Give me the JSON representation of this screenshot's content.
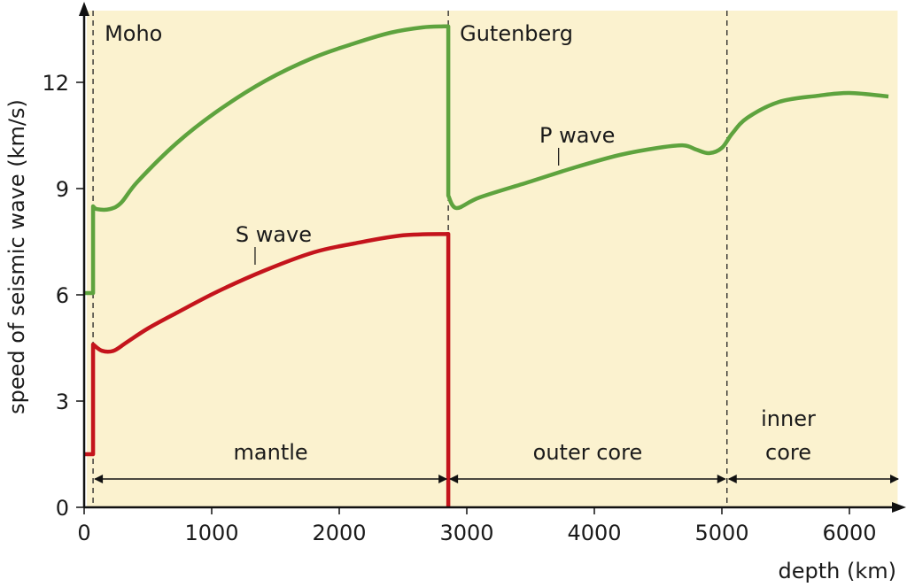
{
  "chart_data": {
    "type": "line",
    "xlabel": "depth (km)",
    "ylabel": "speed of seismic wave (km/s)",
    "xlim": [
      0,
      6371
    ],
    "ylim": [
      0,
      13.8
    ],
    "xticks": [
      0,
      1000,
      2000,
      3000,
      4000,
      5000,
      6000
    ],
    "yticks": [
      0,
      3,
      6,
      9,
      12
    ],
    "grid": false,
    "background": "#fbf2cf",
    "boundaries": [
      {
        "name": "Moho",
        "depth": 70,
        "label": "Moho"
      },
      {
        "name": "Gutenberg",
        "depth": 2855,
        "label": "Gutenberg"
      },
      {
        "name": "inner-core-boundary",
        "depth": 5040,
        "label": ""
      }
    ],
    "regions": [
      {
        "label": "mantle",
        "from": 70,
        "to": 2855
      },
      {
        "label": "outer core",
        "from": 2855,
        "to": 5040
      },
      {
        "label": "inner core",
        "label_lines": [
          "inner",
          "core"
        ],
        "from": 5040,
        "to": 6371
      }
    ],
    "series": [
      {
        "name": "P wave",
        "color": "#5ea33e",
        "segments": [
          [
            [
              0,
              6.05
            ],
            [
              70,
              6.05
            ]
          ],
          [
            [
              70,
              8.5
            ],
            [
              100,
              8.42
            ],
            [
              200,
              8.42
            ],
            [
              290,
              8.6
            ],
            [
              420,
              9.2
            ],
            [
              730,
              10.3
            ],
            [
              1050,
              11.2
            ],
            [
              1424,
              12.05
            ],
            [
              1800,
              12.7
            ],
            [
              2118,
              13.1
            ],
            [
              2400,
              13.4
            ],
            [
              2650,
              13.55
            ],
            [
              2820,
              13.58
            ]
          ],
          [
            [
              2855,
              13.58
            ],
            [
              2855,
              8.8
            ]
          ],
          [
            [
              2855,
              8.8
            ],
            [
              2920,
              8.45
            ],
            [
              3100,
              8.75
            ],
            [
              3500,
              9.2
            ],
            [
              3850,
              9.6
            ],
            [
              4200,
              9.95
            ],
            [
              4500,
              10.15
            ],
            [
              4700,
              10.22
            ],
            [
              4800,
              10.1
            ],
            [
              4900,
              10.0
            ],
            [
              5000,
              10.15
            ],
            [
              5080,
              10.55
            ],
            [
              5200,
              11.0
            ],
            [
              5450,
              11.45
            ],
            [
              5750,
              11.62
            ],
            [
              6000,
              11.7
            ],
            [
              6306,
              11.6
            ]
          ]
        ]
      },
      {
        "name": "S wave",
        "color": "#c4141c",
        "segments": [
          [
            [
              0,
              1.5
            ],
            [
              70,
              1.5
            ]
          ],
          [
            [
              70,
              4.6
            ],
            [
              140,
              4.42
            ],
            [
              230,
              4.42
            ],
            [
              330,
              4.65
            ],
            [
              500,
              5.05
            ],
            [
              730,
              5.5
            ],
            [
              1050,
              6.1
            ],
            [
              1424,
              6.7
            ],
            [
              1800,
              7.2
            ],
            [
              2118,
              7.45
            ],
            [
              2500,
              7.68
            ],
            [
              2855,
              7.72
            ]
          ],
          [
            [
              2855,
              7.72
            ],
            [
              2855,
              0
            ]
          ]
        ]
      }
    ],
    "annotations": [
      {
        "text": "P wave",
        "at_depth": 3720,
        "at_speed": 9.55
      },
      {
        "text": "S wave",
        "at_depth": 1340,
        "at_speed": 6.75
      }
    ]
  }
}
